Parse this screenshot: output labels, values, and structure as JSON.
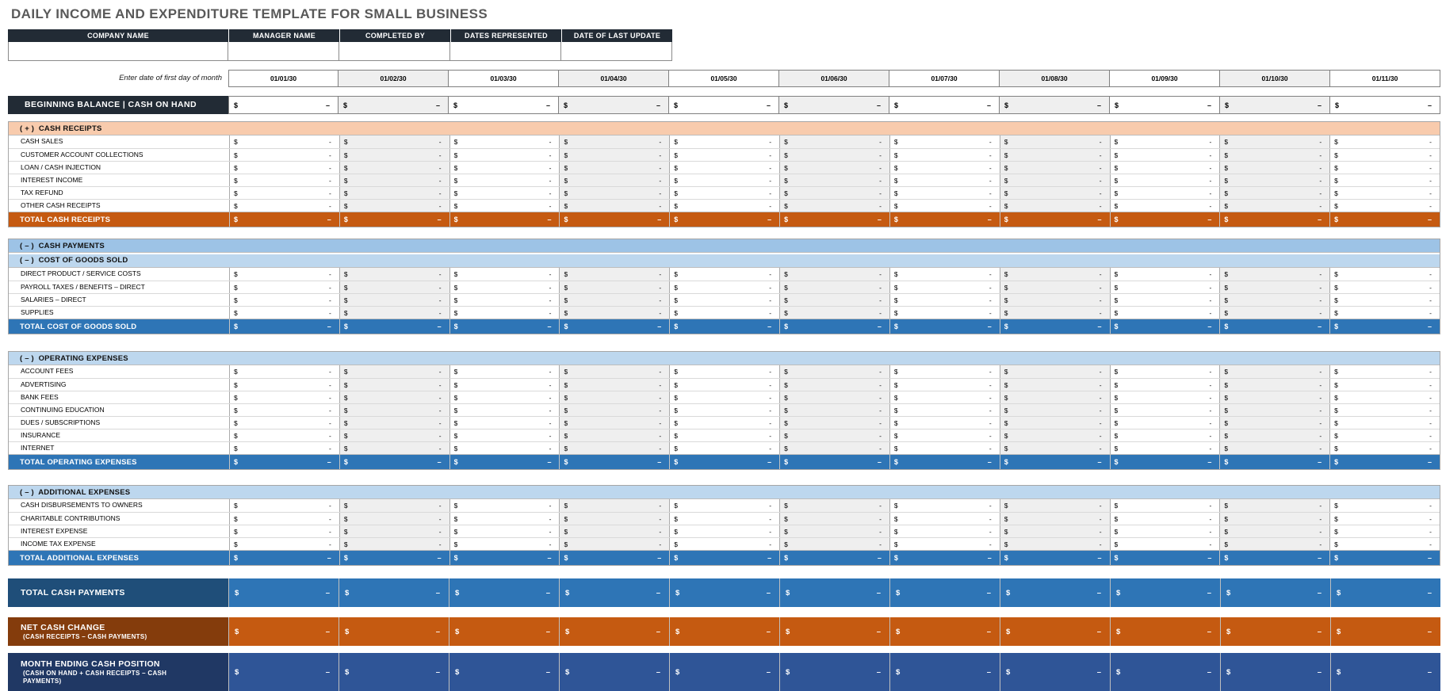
{
  "title": "DAILY INCOME AND EXPENDITURE TEMPLATE FOR SMALL BUSINESS",
  "colors": {
    "header_dark_navy": "#222B35",
    "peach_section": "#F8CBAD",
    "orange_total": "#C55A11",
    "blue_mid_section": "#9DC3E6",
    "blue_light_section": "#BDD7EE",
    "blue_total": "#2E75B6",
    "payments_label": "#1F4E79",
    "payments_value": "#2E75B6",
    "net_label": "#843C0C",
    "net_value": "#C55A11",
    "month_label": "#203864",
    "month_value": "#2F5597",
    "alt_column_gray": "#EFEFEF",
    "title_gray": "#595959"
  },
  "info_table": {
    "headers": [
      "COMPANY NAME",
      "MANAGER NAME",
      "COMPLETED BY",
      "DATES REPRESENTED",
      "DATE OF LAST UPDATE"
    ],
    "values": [
      "",
      "",
      "",
      "",
      ""
    ]
  },
  "date_row": {
    "note": "Enter date of first day of month",
    "dates": [
      "01/01/30",
      "01/02/30",
      "01/03/30",
      "01/04/30",
      "01/05/30",
      "01/06/30",
      "01/07/30",
      "01/08/30",
      "01/09/30",
      "01/10/30",
      "01/11/30"
    ]
  },
  "cells": {
    "currency": "$",
    "item_dash": "-",
    "total_dash": "–"
  },
  "beginning_balance": {
    "label": "BEGINNING BALANCE | CASH ON HAND"
  },
  "sections": [
    {
      "id": "cash-receipts",
      "headers": [
        {
          "label": "( + )  CASH RECEIPTS",
          "bg": "#F8CBAD"
        }
      ],
      "rows": [
        "CASH SALES",
        "CUSTOMER ACCOUNT COLLECTIONS",
        "LOAN / CASH INJECTION",
        "INTEREST INCOME",
        "TAX REFUND",
        "OTHER CASH RECEIPTS"
      ],
      "total": {
        "label": "TOTAL CASH RECEIPTS",
        "bg": "#C55A11"
      }
    },
    {
      "id": "cost-of-goods-sold",
      "headers": [
        {
          "label": "( – )  CASH PAYMENTS",
          "bg": "#9DC3E6"
        },
        {
          "label": "( – )  COST OF GOODS SOLD",
          "bg": "#BDD7EE"
        }
      ],
      "rows": [
        "DIRECT PRODUCT / SERVICE COSTS",
        "PAYROLL TAXES / BENEFITS – DIRECT",
        "SALARIES – DIRECT",
        "SUPPLIES"
      ],
      "total": {
        "label": "TOTAL COST OF GOODS SOLD",
        "bg": "#2E75B6"
      }
    },
    {
      "id": "operating-expenses",
      "headers": [
        {
          "label": "( – )  OPERATING EXPENSES",
          "bg": "#BDD7EE"
        }
      ],
      "rows": [
        "ACCOUNT FEES",
        "ADVERTISING",
        "BANK FEES",
        "CONTINUING EDUCATION",
        "DUES / SUBSCRIPTIONS",
        "INSURANCE",
        "INTERNET"
      ],
      "total": {
        "label": "TOTAL OPERATING EXPENSES",
        "bg": "#2E75B6"
      }
    },
    {
      "id": "additional-expenses",
      "headers": [
        {
          "label": "( – )  ADDITIONAL EXPENSES",
          "bg": "#BDD7EE"
        }
      ],
      "rows": [
        "CASH DISBURSEMENTS TO OWNERS",
        "CHARITABLE CONTRIBUTIONS",
        "INTEREST EXPENSE",
        "INCOME TAX EXPENSE"
      ],
      "total": {
        "label": "TOTAL ADDITIONAL EXPENSES",
        "bg": "#2E75B6"
      }
    }
  ],
  "summary_rows": [
    {
      "id": "total-cash-payments",
      "label": "TOTAL CASH PAYMENTS",
      "sub": "",
      "label_bg": "#1F4E79",
      "value_bg": "#2E75B6"
    },
    {
      "id": "net-cash-change",
      "label": "NET CASH CHANGE",
      "sub": "(CASH RECEIPTS – CASH PAYMENTS)",
      "label_bg": "#843C0C",
      "value_bg": "#C55A11"
    },
    {
      "id": "month-ending-cash-position",
      "label": "MONTH ENDING CASH POSITION",
      "sub": "(CASH ON HAND + CASH RECEIPTS – CASH PAYMENTS)",
      "label_bg": "#203864",
      "value_bg": "#2F5597"
    }
  ]
}
